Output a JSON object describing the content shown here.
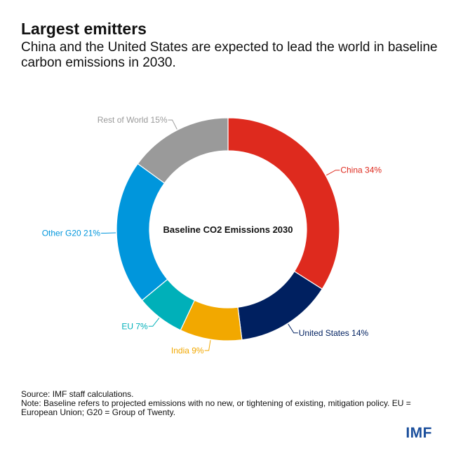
{
  "header": {
    "title": "Largest emitters",
    "subtitle": "China and the United States are expected to lead the world in baseline carbon emissions in 2030."
  },
  "chart_data": {
    "type": "pie",
    "center_label": "Baseline CO2 Emissions 2030",
    "unit": "%",
    "slices": [
      {
        "name": "China",
        "value": 34,
        "label": "China 34%",
        "color": "#de2a1e"
      },
      {
        "name": "United States",
        "value": 14,
        "label": "United States 14%",
        "color": "#002060"
      },
      {
        "name": "India",
        "value": 9,
        "label": "India 9%",
        "color": "#f2a800"
      },
      {
        "name": "EU",
        "value": 7,
        "label": "EU 7%",
        "color": "#00b0b9"
      },
      {
        "name": "Other G20",
        "value": 21,
        "label": "Other G20 21%",
        "color": "#0096dc"
      },
      {
        "name": "Rest of World",
        "value": 15,
        "label": "Rest of World 15%",
        "color": "#9a9a9a"
      }
    ]
  },
  "footer": {
    "source": "Source: IMF staff calculations.",
    "note": "Note: Baseline refers to projected emissions with no new, or tightening of existing, mitigation policy. EU = European Union; G20 = Group of Twenty."
  },
  "logo": {
    "text": "IMF"
  }
}
